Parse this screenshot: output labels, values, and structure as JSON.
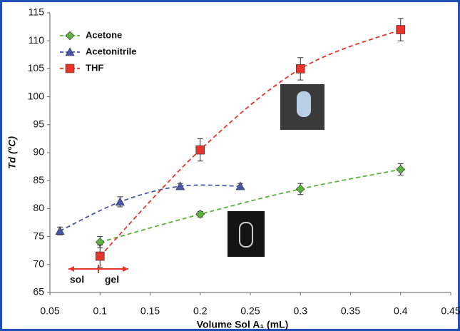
{
  "chart_data": {
    "type": "line",
    "x_label": "Volume Sol A₁ (mL)",
    "y_label": "Td (°C)",
    "annotations": [
      "sol",
      "gel"
    ],
    "xlim": [
      0.05,
      0.45
    ],
    "xticks": [
      0.05,
      0.1,
      0.15,
      0.2,
      0.25,
      0.3,
      0.35,
      0.4,
      0.45
    ],
    "ylim": [
      65,
      115
    ],
    "yticks": [
      65,
      70,
      75,
      80,
      85,
      90,
      95,
      100,
      105,
      110,
      115
    ],
    "grid": false,
    "legend": "top-left",
    "series": [
      {
        "name": "Acetone",
        "color": "#5cb03c",
        "marker": "diamond",
        "x": [
          0.1,
          0.2,
          0.3,
          0.4
        ],
        "values": [
          74,
          79,
          83.5,
          87
        ],
        "errors": [
          1,
          0.5,
          1,
          1
        ]
      },
      {
        "name": "Acetonitrile",
        "color": "#4a56a8",
        "marker": "triangle",
        "x": [
          0.06,
          0.12,
          0.18,
          0.24
        ],
        "values": [
          76,
          81.2,
          84,
          84
        ],
        "errors": [
          0.7,
          0.9,
          0.5,
          0.5
        ]
      },
      {
        "name": "THF",
        "color": "#e8352c",
        "marker": "square",
        "x": [
          0.1,
          0.2,
          0.3,
          0.4
        ],
        "values": [
          71.5,
          90.5,
          105,
          112
        ],
        "errors": [
          2,
          2,
          2,
          2
        ]
      }
    ]
  }
}
